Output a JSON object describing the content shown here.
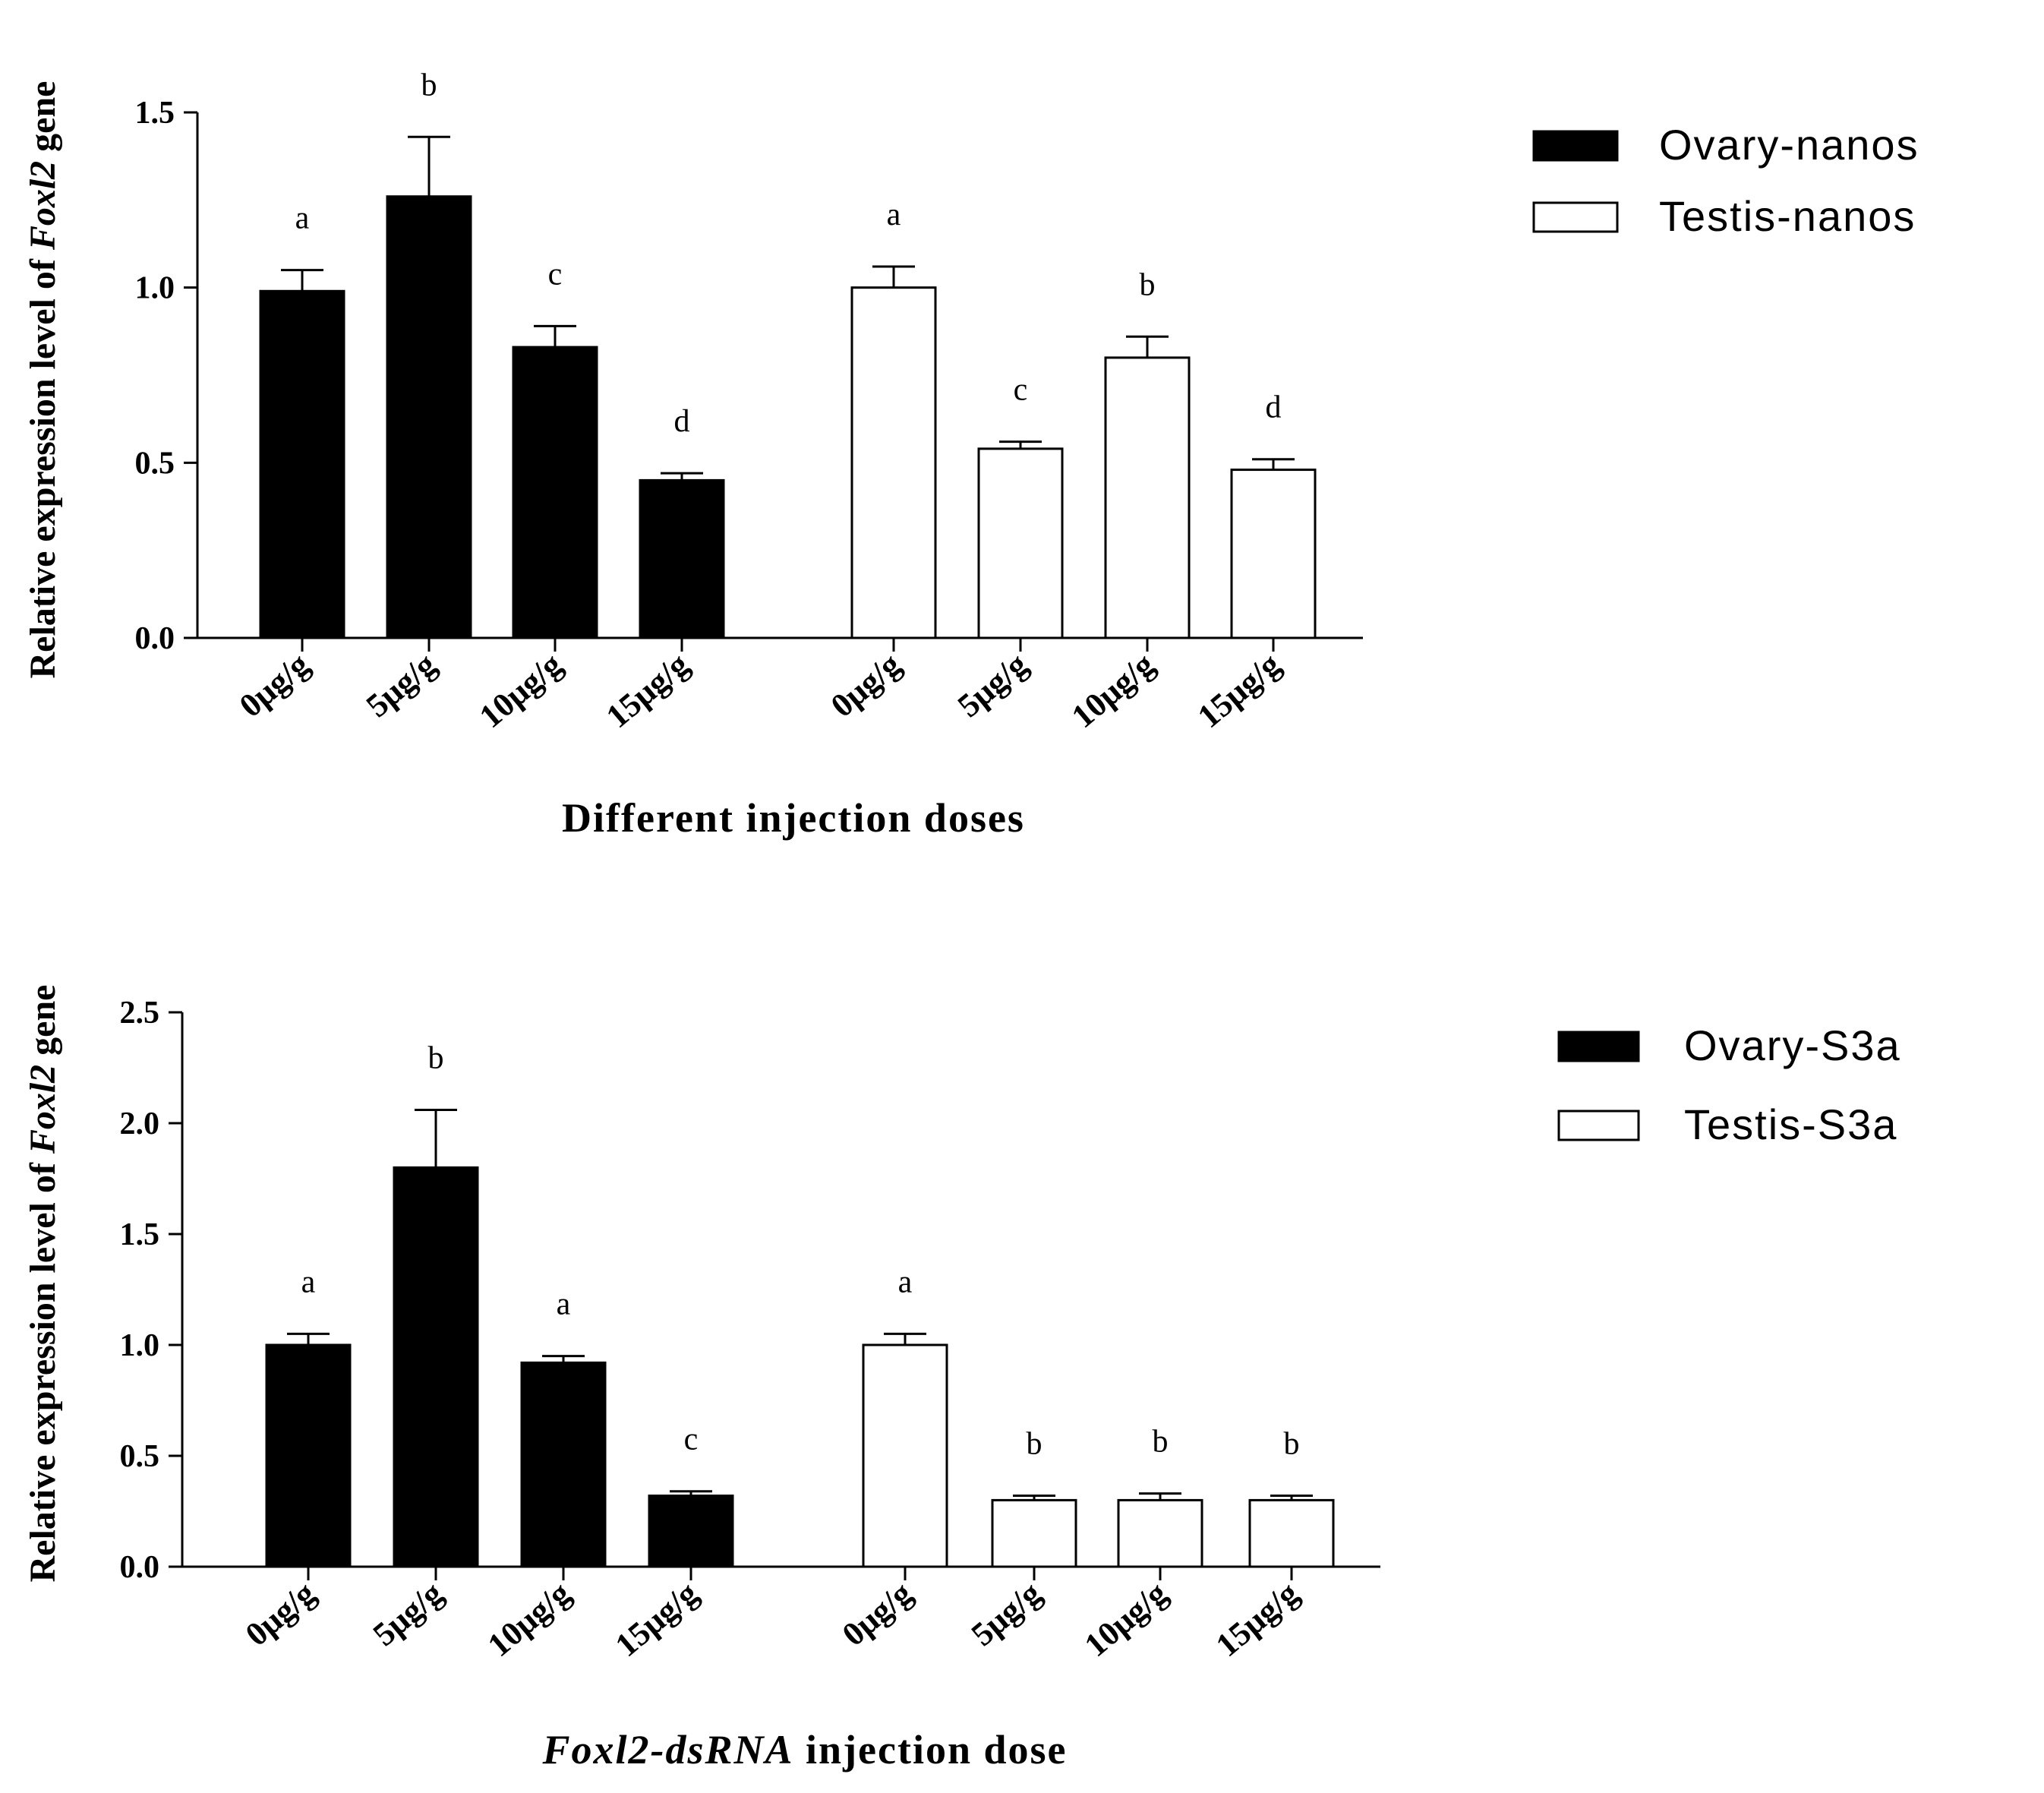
{
  "chart_data": [
    {
      "type": "bar",
      "title": "",
      "ylabel_parts": [
        "Relative expression level of ",
        "Foxl2",
        " gene"
      ],
      "xlabel_parts": [
        {
          "text": "Different injection doses",
          "italic": false
        }
      ],
      "ylim": [
        0,
        1.5
      ],
      "yticks": [
        0.0,
        0.5,
        1.0,
        1.5
      ],
      "ytick_labels": [
        "0.0",
        "0.5",
        "1.0",
        "1.5"
      ],
      "series": [
        {
          "name": "Ovary-nanos",
          "fill": "#000000",
          "categories": [
            "0μg/g",
            "5μg/g",
            "10μg/g",
            "15μg/g"
          ],
          "values": [
            0.99,
            1.26,
            0.83,
            0.45
          ],
          "errors": [
            0.06,
            0.17,
            0.06,
            0.02
          ],
          "letters": [
            "a",
            "b",
            "c",
            "d"
          ]
        },
        {
          "name": "Testis-nanos",
          "fill": "#ffffff",
          "categories": [
            "0μg/g",
            "5μg/g",
            "10μg/g",
            "15μg/g"
          ],
          "values": [
            1.0,
            0.54,
            0.8,
            0.48
          ],
          "errors": [
            0.06,
            0.02,
            0.06,
            0.03
          ],
          "letters": [
            "a",
            "c",
            "b",
            "d"
          ]
        }
      ],
      "legend": [
        "Ovary-nanos",
        "Testis-nanos"
      ]
    },
    {
      "type": "bar",
      "title": "",
      "ylabel_parts": [
        "Relative expression level of ",
        "Foxl2",
        " gene"
      ],
      "xlabel_parts": [
        {
          "text": "Foxl2-dsRNA",
          "italic": true
        },
        {
          "text": " injection dose",
          "italic": false
        }
      ],
      "ylim": [
        0,
        2.5
      ],
      "yticks": [
        0.0,
        0.5,
        1.0,
        1.5,
        2.0,
        2.5
      ],
      "ytick_labels": [
        "0.0",
        "0.5",
        "1.0",
        "1.5",
        "2.0",
        "2.5"
      ],
      "series": [
        {
          "name": "Ovary-S3a",
          "fill": "#000000",
          "categories": [
            "0μg/g",
            "5μg/g",
            "10μg/g",
            "15μg/g"
          ],
          "values": [
            1.0,
            1.8,
            0.92,
            0.32
          ],
          "errors": [
            0.05,
            0.26,
            0.03,
            0.02
          ],
          "letters": [
            "a",
            "b",
            "a",
            "c"
          ]
        },
        {
          "name": "Testis-S3a",
          "fill": "#ffffff",
          "categories": [
            "0μg/g",
            "5μg/g",
            "10μg/g",
            "15μg/g"
          ],
          "values": [
            1.0,
            0.3,
            0.3,
            0.3
          ],
          "errors": [
            0.05,
            0.02,
            0.03,
            0.02
          ],
          "letters": [
            "a",
            "b",
            "b",
            "b"
          ]
        }
      ],
      "legend": [
        "Ovary-S3a",
        "Testis-S3a"
      ]
    }
  ]
}
